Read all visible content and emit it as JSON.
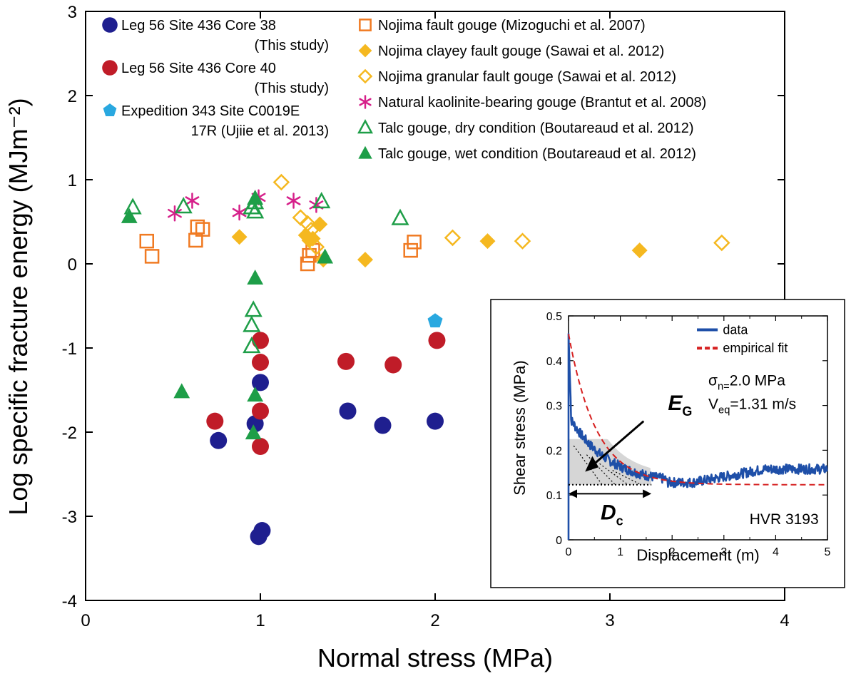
{
  "chart_data": {
    "type": "scatter",
    "xlabel": "Normal stress (MPa)",
    "ylabel": "Log specific fracture energy (MJm⁻²)",
    "xlim": [
      0,
      4
    ],
    "ylim": [
      -4,
      3
    ],
    "x_ticks": [
      "0",
      "1",
      "2",
      "3",
      "4"
    ],
    "y_ticks": [
      "-4",
      "-3",
      "-2",
      "-1",
      "0",
      "1",
      "2",
      "3"
    ],
    "grid": false,
    "legend_left": [
      {
        "line1": "Leg 56 Site 436 Core 38",
        "line2": "(This study)"
      },
      {
        "line1": "Leg 56 Site 436 Core 40",
        "line2": "(This study)"
      },
      {
        "line1": "Expedition 343 Site C0019E",
        "line2": "17R (Ujiie et al. 2013)"
      }
    ],
    "legend_right": [
      {
        "label": "Nojima fault gouge (Mizoguchi et al. 2007)"
      },
      {
        "label": "Nojima clayey fault gouge (Sawai et al. 2012)"
      },
      {
        "label": "Nojima granular fault gouge (Sawai et al. 2012)"
      },
      {
        "label": "Natural kaolinite-bearing gouge (Brantut et al. 2008)"
      },
      {
        "label": "Talc gouge, dry condition (Boutareaud et al. 2012)"
      },
      {
        "label": "Talc gouge, wet condition (Boutareaud et al. 2012)"
      }
    ],
    "series": [
      {
        "marker": "circle",
        "color": "#1f1f8f",
        "points": [
          [
            0.76,
            -2.1
          ],
          [
            0.97,
            -1.9
          ],
          [
            1.0,
            -1.41
          ],
          [
            1.5,
            -1.75
          ],
          [
            1.7,
            -1.92
          ],
          [
            2.0,
            -1.87
          ],
          [
            0.99,
            -3.24
          ],
          [
            1.01,
            -3.17
          ]
        ]
      },
      {
        "marker": "circle",
        "color": "#c01c28",
        "points": [
          [
            0.74,
            -1.87
          ],
          [
            1.0,
            -0.91
          ],
          [
            1.0,
            -1.17
          ],
          [
            1.0,
            -1.75
          ],
          [
            1.0,
            -2.17
          ],
          [
            1.49,
            -1.16
          ],
          [
            1.76,
            -1.2
          ],
          [
            2.01,
            -0.91
          ]
        ]
      },
      {
        "marker": "pentagon",
        "color": "#29a8e0",
        "points": [
          [
            2.0,
            -0.68
          ]
        ]
      },
      {
        "marker": "square-open",
        "color": "#f07a22",
        "points": [
          [
            0.35,
            0.27
          ],
          [
            0.38,
            0.09
          ],
          [
            0.63,
            0.28
          ],
          [
            0.64,
            0.44
          ],
          [
            0.67,
            0.41
          ],
          [
            1.27,
            0.0
          ],
          [
            1.28,
            0.1
          ],
          [
            1.3,
            0.16
          ],
          [
            1.86,
            0.16
          ],
          [
            1.88,
            0.26
          ]
        ]
      },
      {
        "marker": "diamond-filled",
        "color": "#f5b820",
        "points": [
          [
            0.88,
            0.32
          ],
          [
            1.26,
            0.34
          ],
          [
            1.28,
            0.28
          ],
          [
            1.3,
            0.3
          ],
          [
            1.34,
            0.47
          ],
          [
            1.36,
            0.05
          ],
          [
            1.6,
            0.05
          ],
          [
            2.3,
            0.27
          ],
          [
            3.17,
            0.16
          ]
        ]
      },
      {
        "marker": "diamond-open",
        "color": "#f5b820",
        "points": [
          [
            1.12,
            0.97
          ],
          [
            1.23,
            0.55
          ],
          [
            1.27,
            0.48
          ],
          [
            1.29,
            0.4
          ],
          [
            1.32,
            0.2
          ],
          [
            2.1,
            0.31
          ],
          [
            2.5,
            0.27
          ],
          [
            3.64,
            0.25
          ]
        ]
      },
      {
        "marker": "asterisk",
        "color": "#d6208a",
        "points": [
          [
            0.51,
            0.6
          ],
          [
            0.61,
            0.75
          ],
          [
            0.88,
            0.61
          ],
          [
            0.99,
            0.79
          ],
          [
            1.19,
            0.75
          ],
          [
            1.32,
            0.7
          ]
        ]
      },
      {
        "marker": "triangle-open",
        "color": "#1e9e48",
        "points": [
          [
            0.27,
            0.67
          ],
          [
            0.56,
            0.68
          ],
          [
            0.95,
            0.67
          ],
          [
            0.97,
            0.62
          ],
          [
            0.97,
            0.73
          ],
          [
            1.35,
            0.74
          ],
          [
            1.8,
            0.54
          ],
          [
            0.96,
            -0.55
          ],
          [
            0.95,
            -0.73
          ],
          [
            0.95,
            -0.98
          ]
        ]
      },
      {
        "marker": "triangle-filled",
        "color": "#1e9e48",
        "points": [
          [
            0.25,
            0.56
          ],
          [
            0.97,
            0.78
          ],
          [
            1.37,
            0.08
          ],
          [
            0.97,
            -0.17
          ],
          [
            0.55,
            -1.52
          ],
          [
            0.97,
            -1.56
          ],
          [
            0.96,
            -2.01
          ]
        ]
      }
    ],
    "inset": {
      "xlabel": "Displacement (m)",
      "ylabel": "Shear stress (MPa)",
      "xlim": [
        0,
        5
      ],
      "ylim": [
        0,
        0.5
      ],
      "x_ticks": [
        "0",
        "1",
        "2",
        "3",
        "4",
        "5"
      ],
      "y_ticks": [
        "0",
        "0.1",
        "0.2",
        "0.3",
        "0.4",
        "0.5"
      ],
      "legend": [
        "data",
        "empirical fit"
      ],
      "sigma_label": "σn=2.0 MPa",
      "veq_label": "Veq=1.31 m/s",
      "eg_label": "EG",
      "dc_label": "Dc",
      "run_label": "HVR 3193",
      "fit": {
        "tau_peak": 0.46,
        "tau_ss": 0.123,
        "dc": 1.6
      },
      "colors": {
        "data": "#1e4fa8",
        "fit": "#d62020"
      }
    }
  }
}
